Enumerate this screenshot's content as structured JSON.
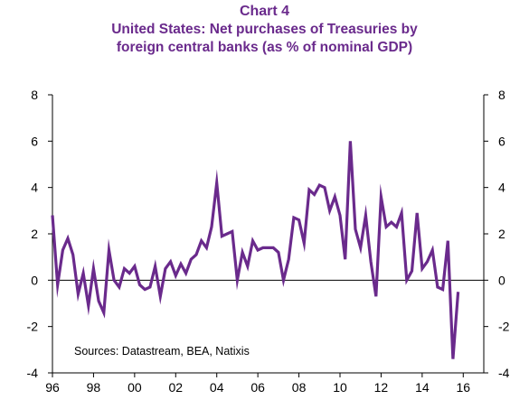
{
  "chart_data": {
    "type": "line",
    "title": "Chart 4",
    "subtitle_lines": [
      "United States: Net purchases of Treasuries by",
      "foreign central banks (as % of nominal GDP)"
    ],
    "xlabel": "",
    "ylabel": "",
    "xlim": [
      1996,
      2017
    ],
    "ylim": [
      -4,
      8
    ],
    "x_ticks": [
      1996,
      1998,
      2000,
      2002,
      2004,
      2006,
      2008,
      2010,
      2012,
      2014,
      2016
    ],
    "x_tick_labels": [
      "96",
      "98",
      "00",
      "02",
      "04",
      "06",
      "08",
      "10",
      "12",
      "14",
      "16"
    ],
    "y_ticks": [
      -4,
      -2,
      0,
      2,
      4,
      6,
      8
    ],
    "y_tick_labels": [
      "-4",
      "-2",
      "0",
      "2",
      "4",
      "6",
      "8"
    ],
    "grid": false,
    "zero_line": true,
    "y_axis_both_sides": true,
    "note": "Sources: Datastream, BEA, Natixis",
    "series": [
      {
        "color": "#6a2a8c",
        "x": [
          1996.0,
          1996.25,
          1996.5,
          1996.75,
          1997.0,
          1997.25,
          1997.5,
          1997.75,
          1998.0,
          1998.25,
          1998.5,
          1998.75,
          1999.0,
          1999.25,
          1999.5,
          1999.75,
          2000.0,
          2000.25,
          2000.5,
          2000.75,
          2001.0,
          2001.25,
          2001.5,
          2001.75,
          2002.0,
          2002.25,
          2002.5,
          2002.75,
          2003.0,
          2003.25,
          2003.5,
          2003.75,
          2004.0,
          2004.25,
          2004.5,
          2004.75,
          2005.0,
          2005.25,
          2005.5,
          2005.75,
          2006.0,
          2006.25,
          2006.5,
          2006.75,
          2007.0,
          2007.25,
          2007.5,
          2007.75,
          2008.0,
          2008.25,
          2008.5,
          2008.75,
          2009.0,
          2009.25,
          2009.5,
          2009.75,
          2010.0,
          2010.25,
          2010.5,
          2010.75,
          2011.0,
          2011.25,
          2011.5,
          2011.75,
          2012.0,
          2012.25,
          2012.5,
          2012.75,
          2013.0,
          2013.25,
          2013.5,
          2013.75,
          2014.0,
          2014.25,
          2014.5,
          2014.75,
          2015.0,
          2015.25,
          2015.5,
          2015.75
        ],
        "y": [
          2.8,
          -0.2,
          1.3,
          1.8,
          1.1,
          -0.6,
          0.3,
          -1.1,
          0.5,
          -0.9,
          -1.4,
          1.3,
          0.0,
          -0.3,
          0.5,
          0.3,
          0.6,
          -0.2,
          -0.4,
          -0.3,
          0.6,
          -0.7,
          0.5,
          0.8,
          0.2,
          0.7,
          0.3,
          0.9,
          1.1,
          1.7,
          1.4,
          2.3,
          4.2,
          1.9,
          2.0,
          2.1,
          0.0,
          1.2,
          0.6,
          1.7,
          1.3,
          1.4,
          1.4,
          1.4,
          1.2,
          0.0,
          0.9,
          2.7,
          2.6,
          1.6,
          3.9,
          3.7,
          4.1,
          4.0,
          3.0,
          3.6,
          2.8,
          0.9,
          6.0,
          2.2,
          1.4,
          2.8,
          0.8,
          -0.7,
          3.6,
          2.3,
          2.5,
          2.3,
          2.9,
          0.0,
          0.4,
          2.9,
          0.5,
          0.8,
          1.3,
          -0.3,
          -0.4,
          1.7,
          -3.4,
          -0.5
        ]
      }
    ]
  }
}
